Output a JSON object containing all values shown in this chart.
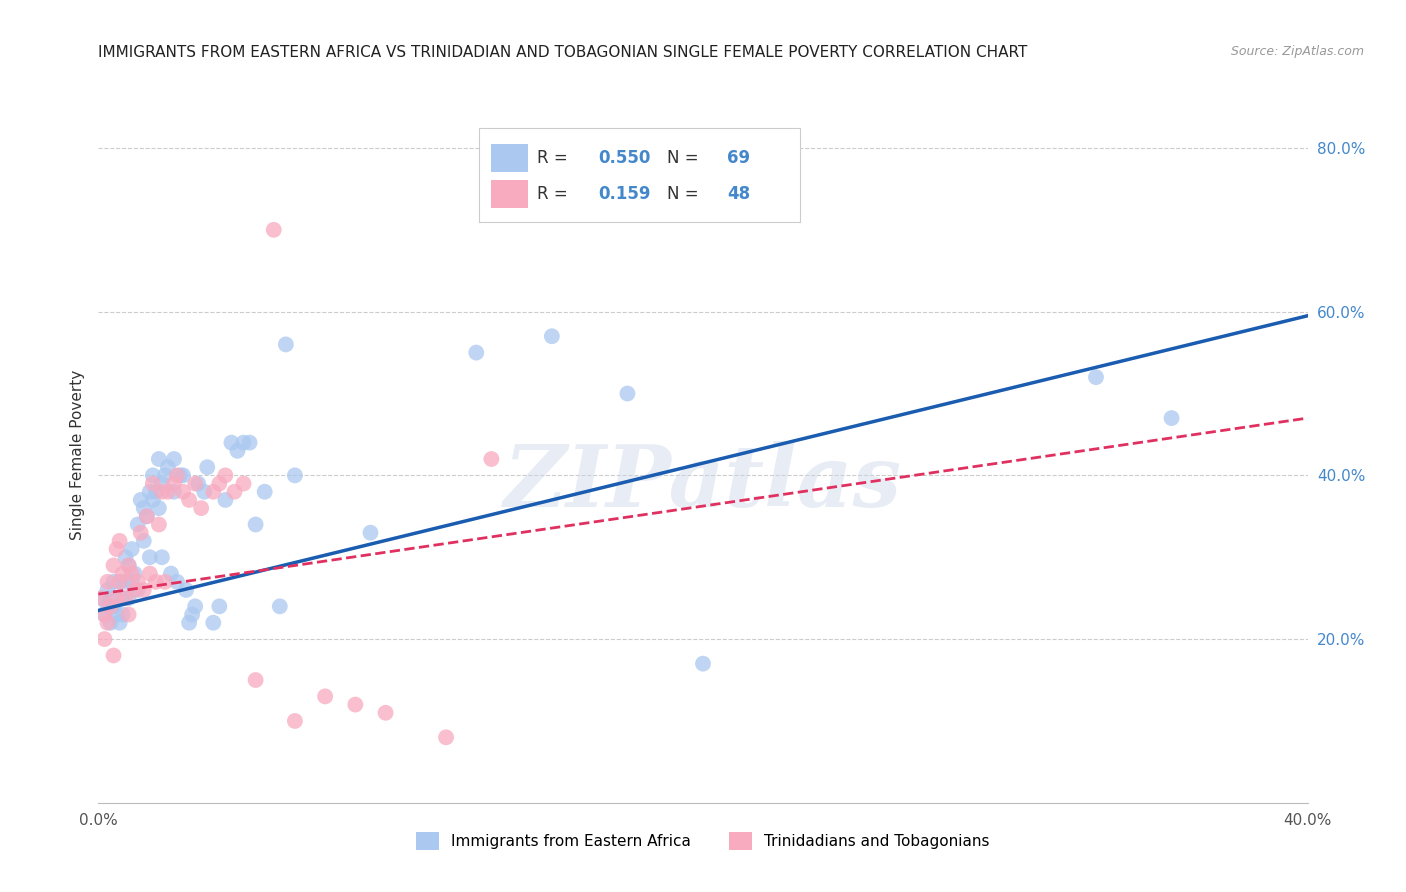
{
  "title": "IMMIGRANTS FROM EASTERN AFRICA VS TRINIDADIAN AND TOBAGONIAN SINGLE FEMALE POVERTY CORRELATION CHART",
  "source": "Source: ZipAtlas.com",
  "ylabel": "Single Female Poverty",
  "x_min": 0.0,
  "x_max": 0.4,
  "y_min": 0.0,
  "y_max": 0.85,
  "y_ticks": [
    0.2,
    0.4,
    0.6,
    0.8
  ],
  "y_tick_labels": [
    "20.0%",
    "40.0%",
    "60.0%",
    "80.0%"
  ],
  "legend_labels": [
    "Immigrants from Eastern Africa",
    "Trinidadians and Tobagonians"
  ],
  "blue_color": "#aac8f0",
  "pink_color": "#f8aabf",
  "blue_line_color": "#1a5cb0",
  "pink_line_color": "#e03060",
  "R_blue": 0.55,
  "N_blue": 69,
  "R_pink": 0.159,
  "N_pink": 48,
  "watermark": "ZIPatlas",
  "blue_line_x0": 0.0,
  "blue_line_y0": 0.235,
  "blue_line_x1": 0.4,
  "blue_line_y1": 0.595,
  "pink_line_x0": 0.0,
  "pink_line_y0": 0.255,
  "pink_line_x1": 0.4,
  "pink_line_y1": 0.47,
  "blue_points_x": [
    0.001,
    0.002,
    0.003,
    0.003,
    0.004,
    0.004,
    0.005,
    0.005,
    0.006,
    0.007,
    0.007,
    0.008,
    0.008,
    0.009,
    0.009,
    0.01,
    0.01,
    0.011,
    0.011,
    0.012,
    0.013,
    0.013,
    0.014,
    0.015,
    0.015,
    0.016,
    0.017,
    0.017,
    0.018,
    0.018,
    0.019,
    0.02,
    0.02,
    0.021,
    0.021,
    0.022,
    0.023,
    0.024,
    0.025,
    0.025,
    0.026,
    0.027,
    0.028,
    0.029,
    0.03,
    0.031,
    0.032,
    0.033,
    0.035,
    0.036,
    0.038,
    0.04,
    0.042,
    0.044,
    0.046,
    0.048,
    0.05,
    0.052,
    0.055,
    0.06,
    0.062,
    0.065,
    0.09,
    0.125,
    0.15,
    0.175,
    0.2,
    0.33,
    0.355
  ],
  "blue_points_y": [
    0.25,
    0.23,
    0.26,
    0.24,
    0.25,
    0.22,
    0.27,
    0.24,
    0.23,
    0.22,
    0.27,
    0.25,
    0.23,
    0.3,
    0.27,
    0.29,
    0.25,
    0.31,
    0.27,
    0.28,
    0.34,
    0.26,
    0.37,
    0.36,
    0.32,
    0.35,
    0.38,
    0.3,
    0.4,
    0.37,
    0.38,
    0.42,
    0.36,
    0.39,
    0.3,
    0.4,
    0.41,
    0.28,
    0.42,
    0.38,
    0.27,
    0.4,
    0.4,
    0.26,
    0.22,
    0.23,
    0.24,
    0.39,
    0.38,
    0.41,
    0.22,
    0.24,
    0.37,
    0.44,
    0.43,
    0.44,
    0.44,
    0.34,
    0.38,
    0.24,
    0.56,
    0.4,
    0.33,
    0.55,
    0.57,
    0.5,
    0.17,
    0.52,
    0.47
  ],
  "pink_points_x": [
    0.001,
    0.002,
    0.002,
    0.003,
    0.003,
    0.004,
    0.005,
    0.005,
    0.006,
    0.006,
    0.007,
    0.007,
    0.008,
    0.009,
    0.01,
    0.01,
    0.011,
    0.012,
    0.013,
    0.014,
    0.015,
    0.016,
    0.017,
    0.018,
    0.019,
    0.02,
    0.021,
    0.022,
    0.023,
    0.025,
    0.026,
    0.028,
    0.03,
    0.032,
    0.034,
    0.038,
    0.04,
    0.042,
    0.045,
    0.048,
    0.052,
    0.058,
    0.065,
    0.075,
    0.085,
    0.095,
    0.115,
    0.13
  ],
  "pink_points_y": [
    0.25,
    0.23,
    0.2,
    0.27,
    0.22,
    0.24,
    0.18,
    0.29,
    0.25,
    0.31,
    0.27,
    0.32,
    0.28,
    0.25,
    0.29,
    0.23,
    0.28,
    0.26,
    0.27,
    0.33,
    0.26,
    0.35,
    0.28,
    0.39,
    0.27,
    0.34,
    0.38,
    0.27,
    0.38,
    0.39,
    0.4,
    0.38,
    0.37,
    0.39,
    0.36,
    0.38,
    0.39,
    0.4,
    0.38,
    0.39,
    0.15,
    0.7,
    0.1,
    0.13,
    0.12,
    0.11,
    0.08,
    0.42
  ]
}
